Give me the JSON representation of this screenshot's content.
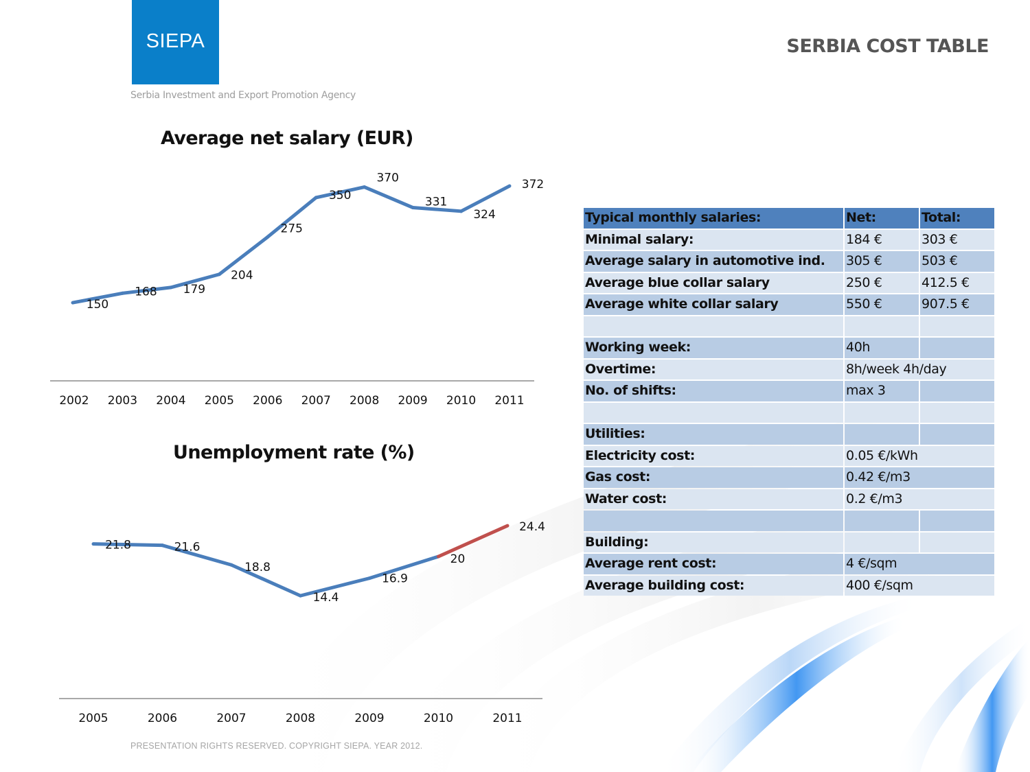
{
  "header": {
    "logo_text": "SIEPA",
    "agency": "Serbia Investment and Export Promotion Agency",
    "title": "SERBIA COST TABLE",
    "logo_color": "#0a7fc9"
  },
  "footer": {
    "text": "PRESENTATION RIGHTS RESERVED. COPYRIGHT SIEPA. YEAR 2012."
  },
  "chart_data": [
    {
      "type": "line",
      "title": "Average net salary (EUR)",
      "xlabel": "",
      "ylabel": "",
      "categories": [
        "2002",
        "2003",
        "2004",
        "2005",
        "2006",
        "2007",
        "2008",
        "2009",
        "2010",
        "2011"
      ],
      "values": [
        150,
        168,
        179,
        204,
        275,
        350,
        370,
        331,
        324,
        372
      ],
      "labels": [
        "150",
        "168",
        "179",
        "204",
        "275",
        "350",
        "370",
        "331",
        "324",
        "372"
      ],
      "ylim": [
        0,
        372
      ],
      "grid": false,
      "legend": "none",
      "series_color": "#4a7ebb"
    },
    {
      "type": "line",
      "title": "Unemployment rate (%)",
      "xlabel": "",
      "ylabel": "",
      "categories": [
        "2005",
        "2006",
        "2007",
        "2008",
        "2009",
        "2010",
        "2011"
      ],
      "values": [
        21.8,
        21.6,
        18.8,
        14.4,
        16.9,
        20,
        24.4
      ],
      "labels": [
        "21.8",
        "21.6",
        "18.8",
        "14.4",
        "16.9",
        "20",
        "24.4"
      ],
      "ylim": [
        0,
        24.4
      ],
      "grid": false,
      "legend": "none",
      "series_color": "#4a7ebb",
      "highlight_segment": {
        "from": "2010",
        "to": "2011",
        "color": "#c0504d"
      }
    }
  ],
  "table": {
    "header": [
      "Typical monthly salaries:",
      "Net:",
      "Total:"
    ],
    "rows": [
      [
        "Minimal salary:",
        "184 €",
        "303 €"
      ],
      [
        "Average salary in automotive ind.",
        "305 €",
        "503 €"
      ],
      [
        "Average blue collar salary",
        "250 €",
        "412.5 €"
      ],
      [
        "Average white collar salary",
        "550 €",
        "907.5 €"
      ],
      [
        "",
        "",
        ""
      ],
      [
        "Working week:",
        "40h",
        ""
      ],
      [
        "Overtime:",
        "8h/week 4h/day",
        ""
      ],
      [
        "No. of shifts:",
        "max 3",
        ""
      ],
      [
        "",
        "",
        ""
      ],
      [
        "Utilities:",
        "",
        ""
      ],
      [
        "Electricity cost:",
        "0.05 €/kWh",
        ""
      ],
      [
        "Gas cost:",
        "0.42 €/m3",
        ""
      ],
      [
        "Water cost:",
        "0.2 €/m3",
        ""
      ],
      [
        "",
        "",
        ""
      ],
      [
        "Building:",
        "",
        ""
      ],
      [
        "Average rent cost:",
        "4 €/sqm",
        ""
      ],
      [
        "Average building cost:",
        "400 €/sqm",
        ""
      ]
    ],
    "merged_value_rows": [
      6,
      10,
      11,
      12,
      15,
      16
    ]
  }
}
